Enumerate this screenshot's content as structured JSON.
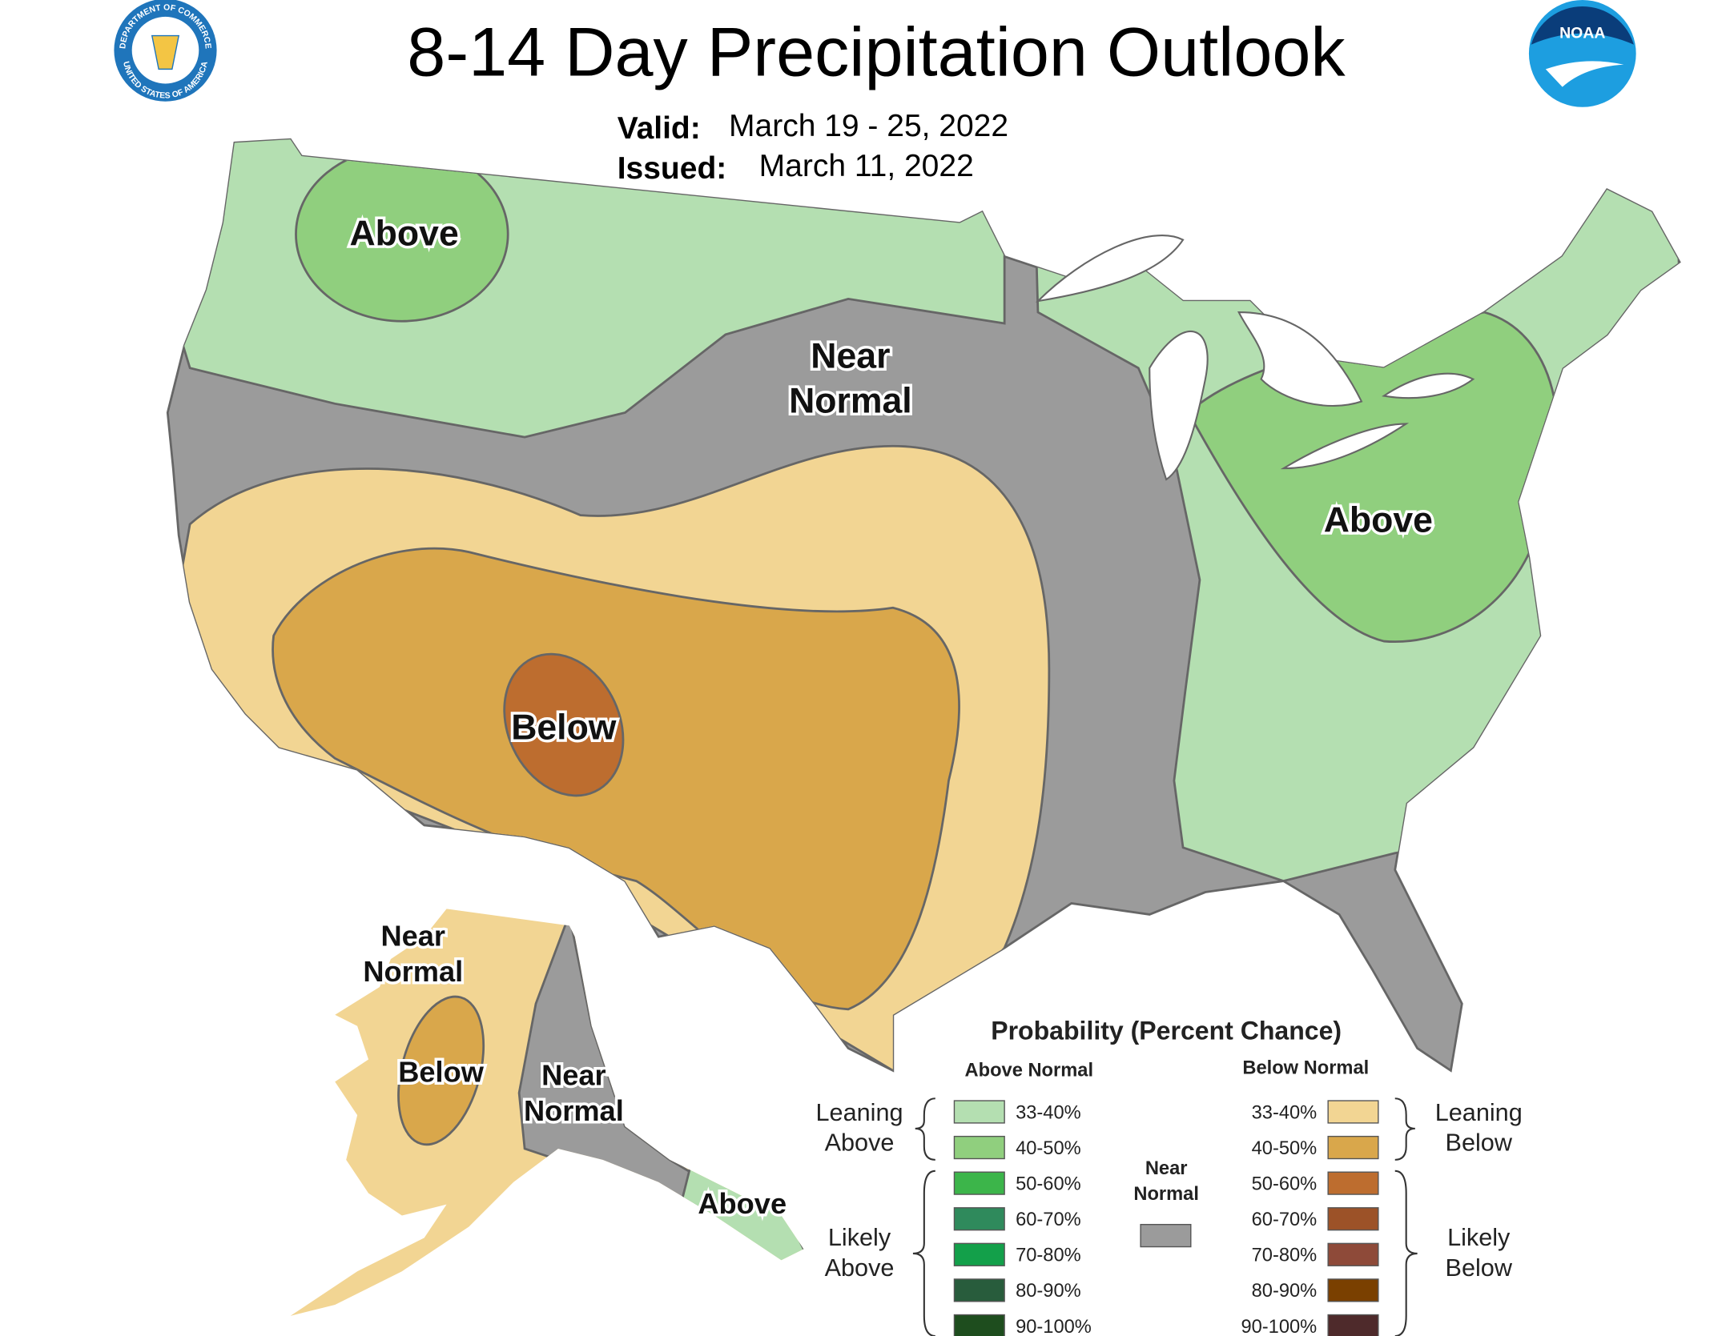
{
  "header": {
    "title": "8-14 Day Precipitation Outlook",
    "valid_label": "Valid:",
    "valid": "March 19 - 25, 2022",
    "issued_label": "Issued:",
    "issued": "March 11, 2022"
  },
  "logos": {
    "commerce_top": "DEPARTMENT OF COMMERCE",
    "commerce_bottom": "UNITED STATES OF AMERICA",
    "noaa": "NOAA"
  },
  "map_labels": [
    {
      "lines": [
        "Above"
      ]
    },
    {
      "lines": [
        "Near",
        "Normal"
      ]
    },
    {
      "lines": [
        "Above"
      ]
    },
    {
      "lines": [
        "Below"
      ]
    },
    {
      "lines": [
        "Near",
        "Normal"
      ]
    },
    {
      "lines": [
        "Below"
      ]
    },
    {
      "lines": [
        "Near",
        "Normal"
      ]
    },
    {
      "lines": [
        "Above"
      ]
    }
  ],
  "legend": {
    "title": "Probability (Percent Chance)",
    "above_heading": "Above Normal",
    "below_heading": "Below Normal",
    "above": [
      {
        "label": "33-40%",
        "color": "#b4dfb1"
      },
      {
        "label": "40-50%",
        "color": "#90cf7e"
      },
      {
        "label": "50-60%",
        "color": "#3cb54a"
      },
      {
        "label": "60-70%",
        "color": "#2f8a5c"
      },
      {
        "label": "70-80%",
        "color": "#13a04a"
      },
      {
        "label": "80-90%",
        "color": "#285c3c"
      },
      {
        "label": "90-100%",
        "color": "#1e4d1e"
      }
    ],
    "below": [
      {
        "label": "33-40%",
        "color": "#f2d593"
      },
      {
        "label": "40-50%",
        "color": "#d9a74b"
      },
      {
        "label": "50-60%",
        "color": "#bd6d2f"
      },
      {
        "label": "60-70%",
        "color": "#9c5228"
      },
      {
        "label": "70-80%",
        "color": "#8e4a39"
      },
      {
        "label": "80-90%",
        "color": "#7a4000"
      },
      {
        "label": "90-100%",
        "color": "#4e2a2b"
      }
    ],
    "near": {
      "lines": [
        "Near",
        "Normal"
      ],
      "color": "#9b9b9b"
    },
    "leaning_above": [
      "Leaning",
      "Above"
    ],
    "likely_above": [
      "Likely",
      "Above"
    ],
    "leaning_below": [
      "Leaning",
      "Below"
    ],
    "likely_below": [
      "Likely",
      "Below"
    ]
  }
}
